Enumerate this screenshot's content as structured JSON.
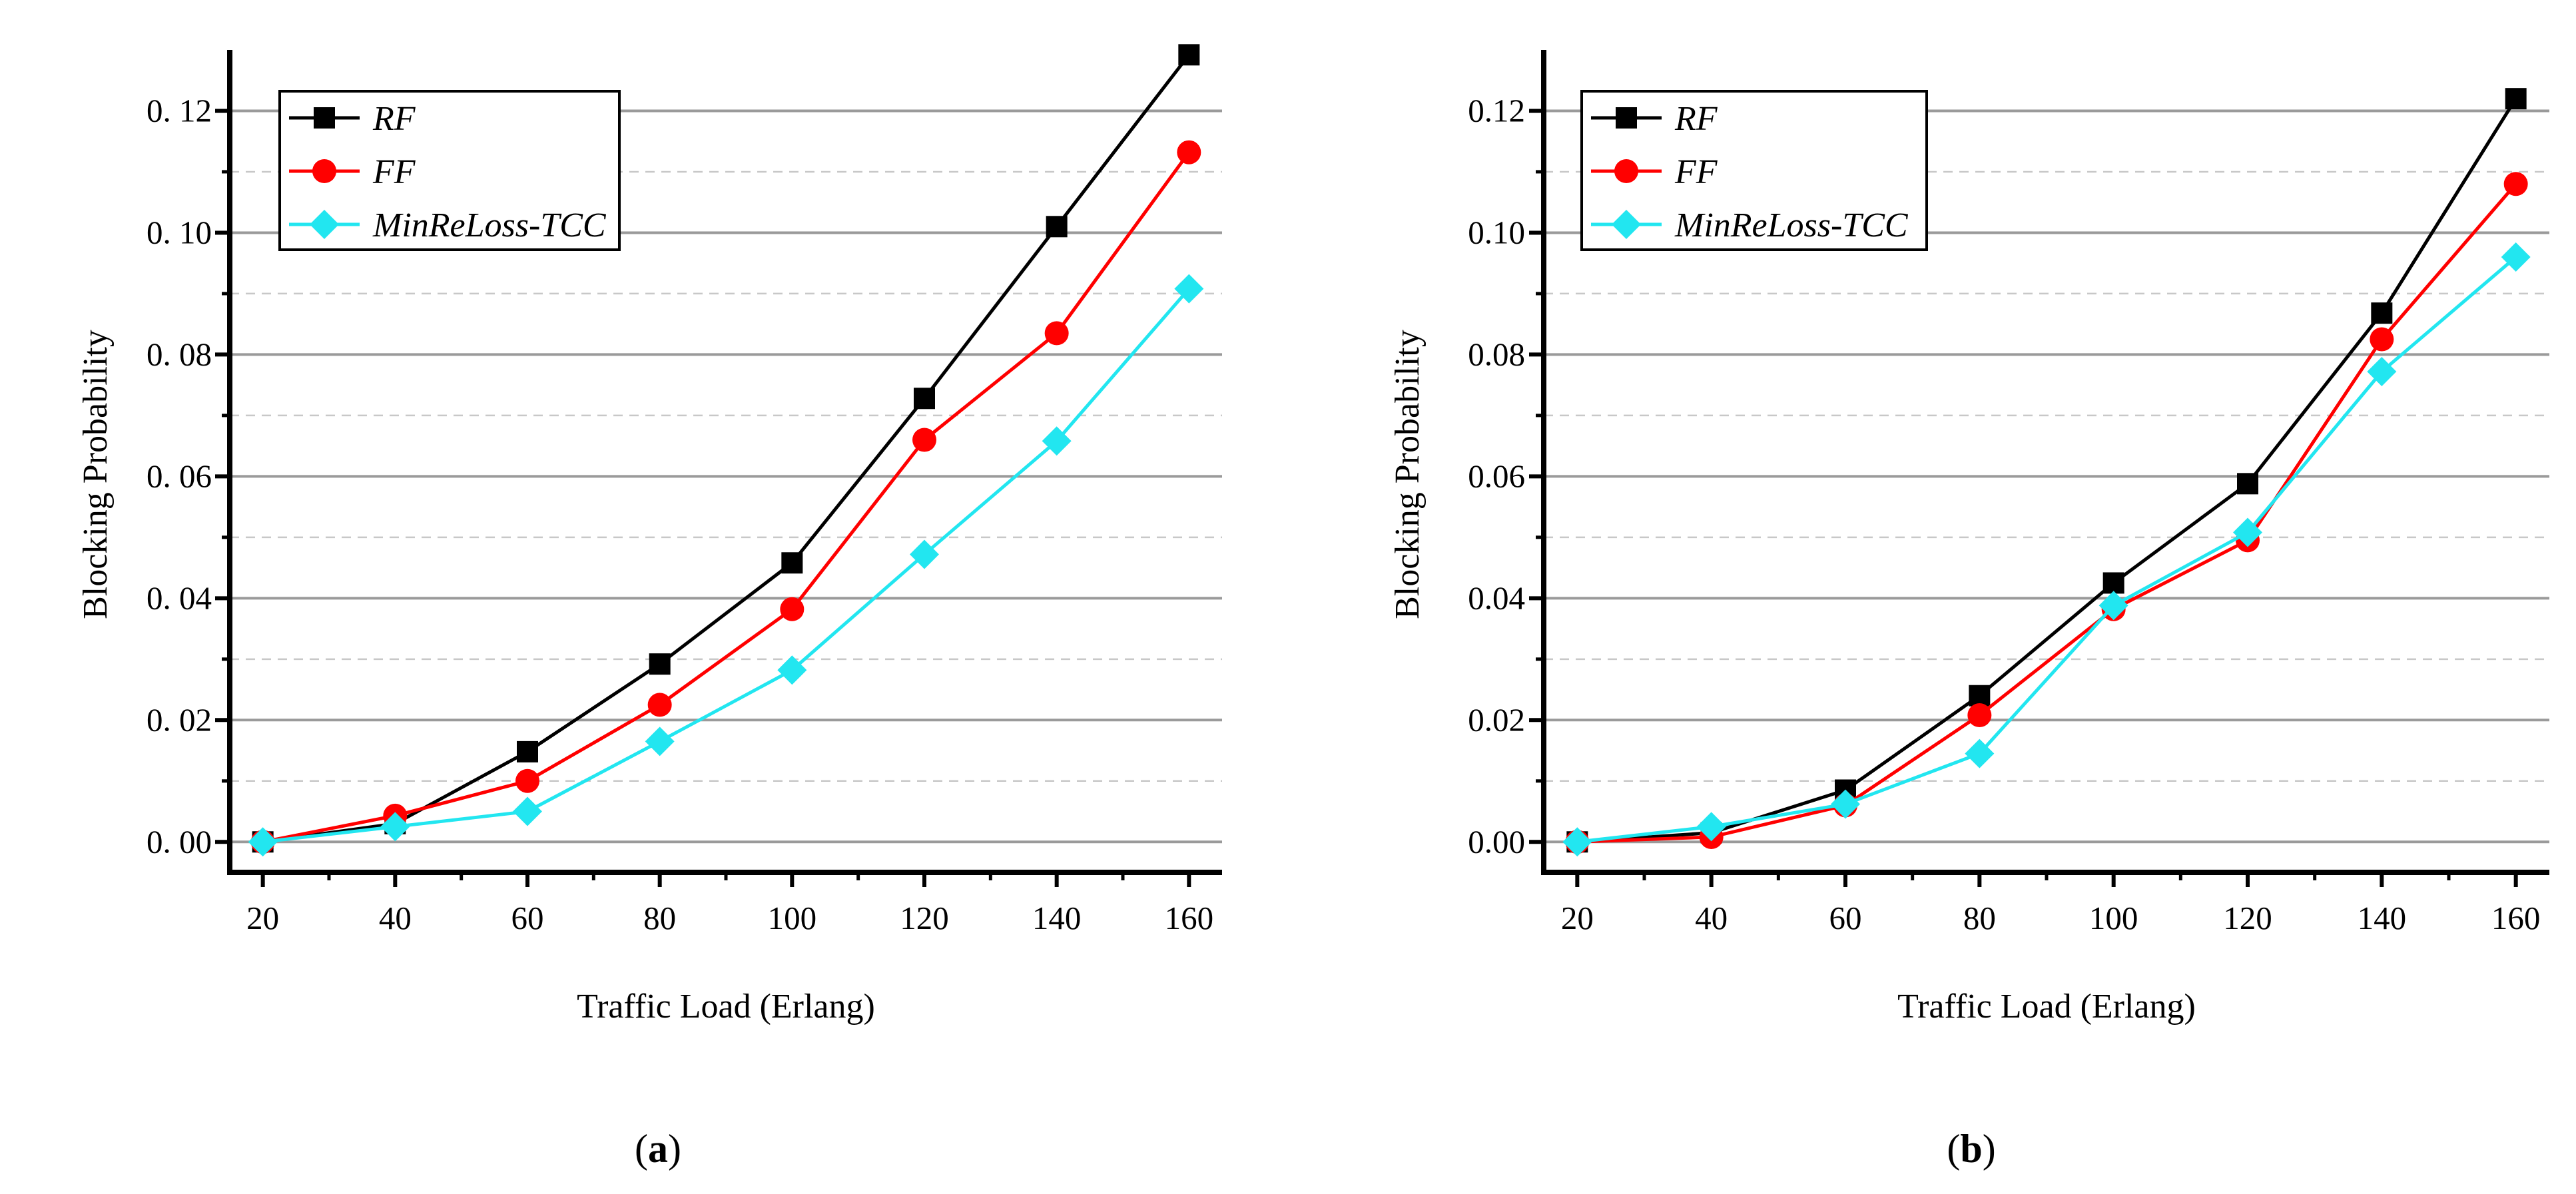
{
  "figure": {
    "caption_a": {
      "open": "(",
      "letter": "a",
      "close": ")"
    },
    "caption_b": {
      "open": "(",
      "letter": "b",
      "close": ")"
    }
  },
  "chart_data": [
    {
      "type": "line",
      "panel": "a",
      "title": "",
      "xlabel": "Traffic Load (Erlang)",
      "ylabel": "Blocking Probability",
      "x": [
        20,
        40,
        60,
        80,
        100,
        120,
        140,
        160
      ],
      "xlim": [
        15,
        165
      ],
      "ylim": [
        -0.005,
        0.13
      ],
      "xticks": [
        20,
        40,
        60,
        80,
        100,
        120,
        140,
        160
      ],
      "xtick_labels": [
        "20",
        "40",
        "60",
        "80",
        "100",
        "120",
        "140",
        "160"
      ],
      "yticks": [
        0.0,
        0.02,
        0.04,
        0.06,
        0.08,
        0.1,
        0.12
      ],
      "ytick_labels": [
        "0. 00",
        "0. 02",
        "0. 04",
        "0. 06",
        "0. 08",
        "0. 10",
        "0. 12"
      ],
      "legend_position": "top-left",
      "grid": true,
      "series": [
        {
          "name": "RF",
          "color": "#000000",
          "marker": "square",
          "values": [
            0.0,
            0.003,
            0.0148,
            0.0292,
            0.0458,
            0.0728,
            0.101,
            0.1292
          ]
        },
        {
          "name": "FF",
          "color": "#ff0000",
          "marker": "circle",
          "values": [
            0.0,
            0.0043,
            0.01,
            0.0225,
            0.0382,
            0.066,
            0.0835,
            0.1132
          ]
        },
        {
          "name": "MinReLoss-TCC",
          "color": "#22e6f0",
          "marker": "diamond",
          "values": [
            0.0,
            0.0025,
            0.005,
            0.0165,
            0.0282,
            0.0472,
            0.0658,
            0.0908
          ]
        }
      ]
    },
    {
      "type": "line",
      "panel": "b",
      "title": "",
      "xlabel": "Traffic Load (Erlang)",
      "ylabel": "Blocking Probability",
      "x": [
        20,
        40,
        60,
        80,
        100,
        120,
        140,
        160
      ],
      "xlim": [
        15,
        165
      ],
      "ylim": [
        -0.005,
        0.13
      ],
      "xticks": [
        20,
        40,
        60,
        80,
        100,
        120,
        140,
        160
      ],
      "xtick_labels": [
        "20",
        "40",
        "60",
        "80",
        "100",
        "120",
        "140",
        "160"
      ],
      "yticks": [
        0.0,
        0.02,
        0.04,
        0.06,
        0.08,
        0.1,
        0.12
      ],
      "ytick_labels": [
        "0.00",
        "0.02",
        "0.04",
        "0.06",
        "0.08",
        "0.10",
        "0.12"
      ],
      "legend_position": "top-left",
      "grid": true,
      "series": [
        {
          "name": "RF",
          "color": "#000000",
          "marker": "square",
          "values": [
            0.0,
            0.0015,
            0.0085,
            0.024,
            0.0425,
            0.0588,
            0.0868,
            0.122
          ]
        },
        {
          "name": "FF",
          "color": "#ff0000",
          "marker": "circle",
          "values": [
            0.0,
            0.0008,
            0.006,
            0.0208,
            0.0382,
            0.0495,
            0.0825,
            0.108
          ]
        },
        {
          "name": "MinReLoss-TCC",
          "color": "#22e6f0",
          "marker": "diamond",
          "values": [
            0.0,
            0.0025,
            0.0062,
            0.0145,
            0.0388,
            0.0508,
            0.0772,
            0.096
          ]
        }
      ]
    }
  ]
}
